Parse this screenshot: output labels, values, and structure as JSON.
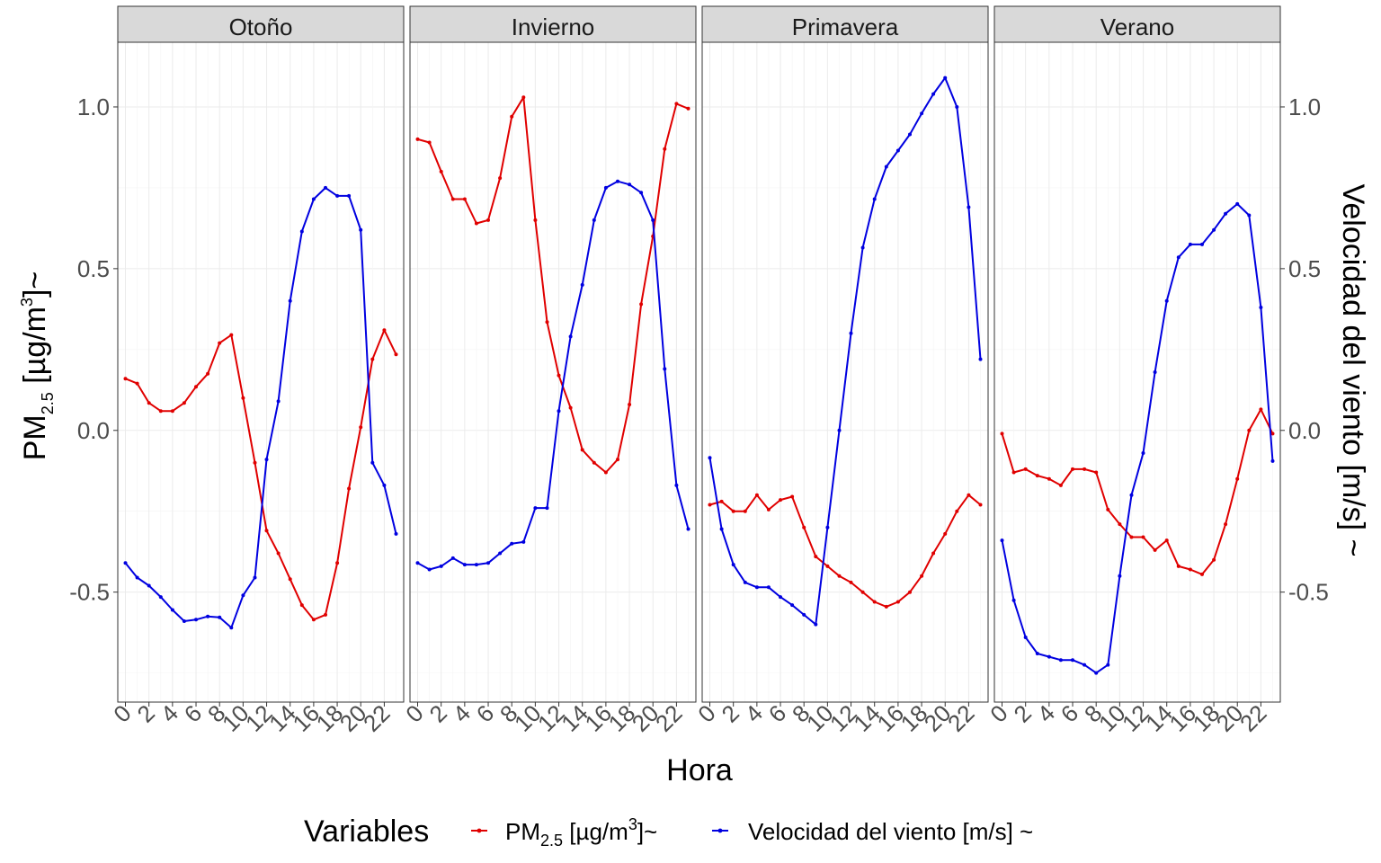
{
  "chart_data": {
    "type": "line",
    "facet_panels": [
      "Otoño",
      "Invierno",
      "Primavera",
      "Verano"
    ],
    "xlabel": "Hora",
    "x": [
      0,
      1,
      2,
      3,
      4,
      5,
      6,
      7,
      8,
      9,
      10,
      11,
      12,
      13,
      14,
      15,
      16,
      17,
      18,
      19,
      20,
      21,
      22,
      23
    ],
    "x_tick_labels": [
      "0",
      "2",
      "4",
      "6",
      "8",
      "10",
      "12",
      "14",
      "16",
      "18",
      "20",
      "22"
    ],
    "ylim": [
      -0.84,
      1.2
    ],
    "y_ticks": [
      1.0,
      0.5,
      0.0,
      -0.5
    ],
    "y_tick_labels": [
      "1.0",
      "0.5",
      "0.0",
      "-0.5"
    ],
    "ylabel_left": {
      "pre": "PM",
      "sub": "2.5",
      "mid": " [µg/m",
      "sup": "3",
      "post": "]~"
    },
    "ylabel_right": "Velocidad del viento [m/s] ~",
    "legend": {
      "title": "Variables",
      "items": [
        {
          "pre": "PM",
          "sub": "2.5",
          "mid": " [µg/m",
          "sup": "3",
          "post": "]~",
          "color": "#e00000"
        },
        {
          "label": "Velocidad del viento [m/s] ~",
          "color": "#0000e0"
        }
      ]
    },
    "grid": true,
    "series": [
      {
        "name": "PM2.5 [µg/m3]~",
        "color": "#e00000",
        "panels": {
          "Otoño": [
            0.16,
            0.145,
            0.085,
            0.06,
            0.06,
            0.085,
            0.135,
            0.175,
            0.27,
            0.295,
            0.1,
            -0.1,
            -0.31,
            -0.38,
            -0.46,
            -0.54,
            -0.585,
            -0.57,
            -0.41,
            -0.18,
            0.01,
            0.22,
            0.31,
            0.235
          ],
          "Invierno": [
            0.9,
            0.89,
            0.8,
            0.715,
            0.715,
            0.64,
            0.65,
            0.78,
            0.97,
            1.03,
            0.65,
            0.335,
            0.17,
            0.07,
            -0.06,
            -0.1,
            -0.13,
            -0.09,
            0.08,
            0.39,
            0.6,
            0.87,
            1.01,
            0.995
          ],
          "Primavera": [
            -0.23,
            -0.22,
            -0.25,
            -0.25,
            -0.2,
            -0.245,
            -0.215,
            -0.205,
            -0.3,
            -0.39,
            -0.42,
            -0.45,
            -0.47,
            -0.5,
            -0.53,
            -0.545,
            -0.53,
            -0.5,
            -0.45,
            -0.38,
            -0.32,
            -0.25,
            -0.2,
            -0.23
          ],
          "Verano": [
            -0.01,
            -0.13,
            -0.12,
            -0.14,
            -0.15,
            -0.17,
            -0.12,
            -0.12,
            -0.13,
            -0.245,
            -0.29,
            -0.33,
            -0.33,
            -0.37,
            -0.34,
            -0.42,
            -0.43,
            -0.445,
            -0.4,
            -0.29,
            -0.15,
            0.0,
            0.065,
            -0.01
          ]
        }
      },
      {
        "name": "Velocidad del viento [m/s] ~",
        "color": "#0000e0",
        "panels": {
          "Otoño": [
            -0.41,
            -0.455,
            -0.48,
            -0.515,
            -0.555,
            -0.59,
            -0.585,
            -0.575,
            -0.578,
            -0.61,
            -0.51,
            -0.455,
            -0.09,
            0.09,
            0.4,
            0.615,
            0.715,
            0.75,
            0.725,
            0.725,
            0.62,
            -0.1,
            -0.17,
            -0.32
          ],
          "Invierno": [
            -0.41,
            -0.43,
            -0.42,
            -0.395,
            -0.415,
            -0.415,
            -0.41,
            -0.38,
            -0.35,
            -0.345,
            -0.24,
            -0.24,
            0.06,
            0.29,
            0.45,
            0.65,
            0.75,
            0.77,
            0.76,
            0.735,
            0.65,
            0.19,
            -0.17,
            -0.305
          ],
          "Primavera": [
            -0.085,
            -0.305,
            -0.415,
            -0.47,
            -0.485,
            -0.485,
            -0.515,
            -0.54,
            -0.57,
            -0.6,
            -0.3,
            0.0,
            0.3,
            0.565,
            0.715,
            0.815,
            0.865,
            0.915,
            0.98,
            1.04,
            1.09,
            1.0,
            0.69,
            0.22
          ],
          "Verano": [
            -0.34,
            -0.525,
            -0.64,
            -0.69,
            -0.7,
            -0.71,
            -0.71,
            -0.725,
            -0.75,
            -0.725,
            -0.45,
            -0.2,
            -0.07,
            0.18,
            0.4,
            0.535,
            0.575,
            0.575,
            0.62,
            0.67,
            0.7,
            0.665,
            0.38,
            -0.095
          ]
        }
      }
    ]
  }
}
